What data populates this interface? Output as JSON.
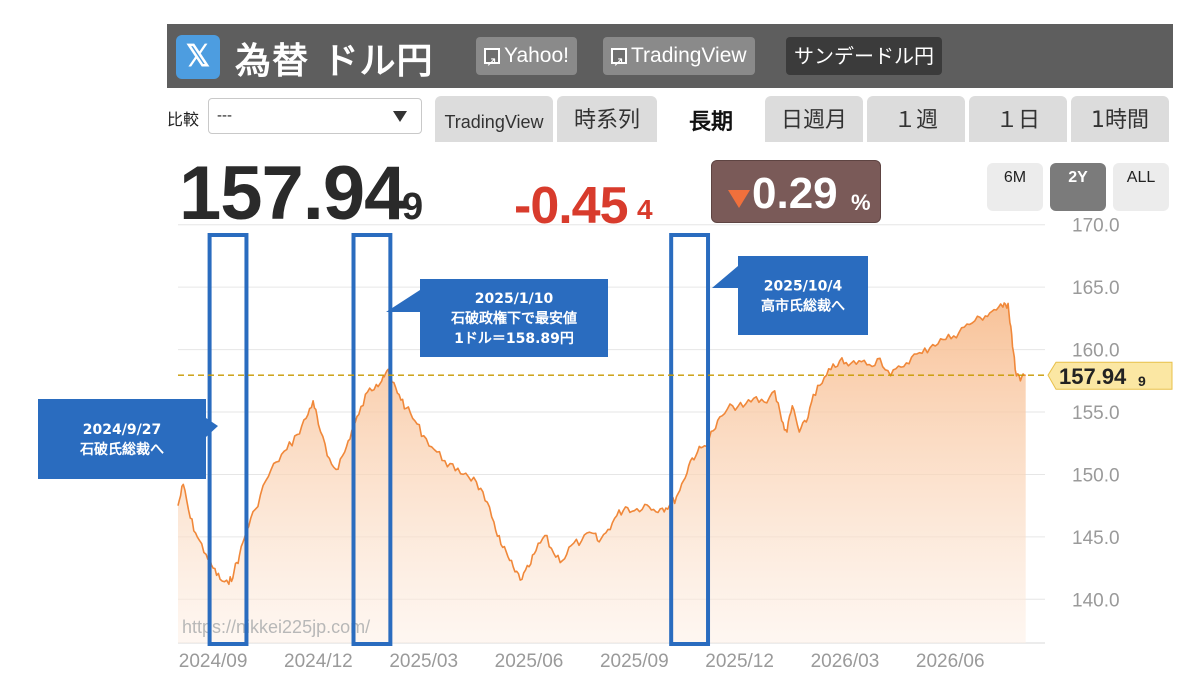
{
  "header": {
    "x_icon_glyph": "𝕏",
    "title": "為替 ドル円",
    "buttons": [
      {
        "label": "Yahoo!",
        "icon": "external-link-icon"
      },
      {
        "label": "TradingView",
        "icon": "external-link-icon"
      },
      {
        "label": "サンデードル円"
      }
    ]
  },
  "compare": {
    "label": "比較",
    "selected": "---"
  },
  "tabs": [
    {
      "label": "TradingView",
      "active": false
    },
    {
      "label": "時系列",
      "active": false
    },
    {
      "label": "長期",
      "active": true
    },
    {
      "label": "日週月",
      "active": false
    },
    {
      "label": "１週",
      "active": false
    },
    {
      "label": "１日",
      "active": false
    },
    {
      "label": "1時間",
      "active": false
    }
  ],
  "quote": {
    "price_main": "157.94",
    "price_sub": "9",
    "change_main": "-0.45",
    "change_sub": "4",
    "percent": "0.29",
    "percent_sign": "%",
    "down_color": "#d83b2c"
  },
  "range_buttons": [
    {
      "label": "6M",
      "active": false
    },
    {
      "label": "2Y",
      "active": true
    },
    {
      "label": "ALL",
      "active": false
    }
  ],
  "chart_data": {
    "type": "area",
    "xlabel": "",
    "ylabel": "",
    "ylim": [
      136.5,
      171.5
    ],
    "y_ticks": [
      "170.0",
      "165.0",
      "160.0",
      "155.0",
      "150.0",
      "145.0",
      "140.0"
    ],
    "y_tick_values": [
      170,
      165,
      160,
      155,
      150,
      145,
      140
    ],
    "x_tick_labels": [
      "2024/09",
      "2024/12",
      "2025/03",
      "2025/06",
      "2025/09",
      "2025/12",
      "2026/03",
      "2026/06"
    ],
    "x_tick_months": [
      1,
      4,
      7,
      10,
      13,
      16,
      19,
      22
    ],
    "xlim_months": [
      0,
      24.7
    ],
    "current_value": 157.949,
    "current_label_main": "157.94",
    "current_label_sub": "9",
    "series": [
      {
        "line_color": "#f0883a",
        "fill_color": "#fbd8bf",
        "points": [
          [
            0,
            147.5
          ],
          [
            0.15,
            149.2
          ],
          [
            0.35,
            146.5
          ],
          [
            0.55,
            145.0
          ],
          [
            0.8,
            143.6
          ],
          [
            1.0,
            142.5
          ],
          [
            1.2,
            141.6
          ],
          [
            1.45,
            141.2
          ],
          [
            1.6,
            142.3
          ],
          [
            1.75,
            143.5
          ],
          [
            1.95,
            145.5
          ],
          [
            2.2,
            147.2
          ],
          [
            2.5,
            149.5
          ],
          [
            2.8,
            151.0
          ],
          [
            3.1,
            152.0
          ],
          [
            3.4,
            153.2
          ],
          [
            3.65,
            154.5
          ],
          [
            3.85,
            155.9
          ],
          [
            4.0,
            154.0
          ],
          [
            4.25,
            151.5
          ],
          [
            4.5,
            150.4
          ],
          [
            4.75,
            151.8
          ],
          [
            4.95,
            153.5
          ],
          [
            5.15,
            154.8
          ],
          [
            5.4,
            156.6
          ],
          [
            5.65,
            157.2
          ],
          [
            5.85,
            157.9
          ],
          [
            5.95,
            158.3
          ],
          [
            6.1,
            157.4
          ],
          [
            6.3,
            156.4
          ],
          [
            6.5,
            155.3
          ],
          [
            6.75,
            154.3
          ],
          [
            7.0,
            153.1
          ],
          [
            7.3,
            152.0
          ],
          [
            7.6,
            151.1
          ],
          [
            7.9,
            150.3
          ],
          [
            8.2,
            150.1
          ],
          [
            8.5,
            149.4
          ],
          [
            8.75,
            147.9
          ],
          [
            9.0,
            146.2
          ],
          [
            9.2,
            144.4
          ],
          [
            9.4,
            143.4
          ],
          [
            9.6,
            142.2
          ],
          [
            9.8,
            141.6
          ],
          [
            10.0,
            142.6
          ],
          [
            10.2,
            143.9
          ],
          [
            10.45,
            145.1
          ],
          [
            10.7,
            143.7
          ],
          [
            10.95,
            143.1
          ],
          [
            11.2,
            144.3
          ],
          [
            11.5,
            144.7
          ],
          [
            11.8,
            145.3
          ],
          [
            12.0,
            144.6
          ],
          [
            12.25,
            145.6
          ],
          [
            12.5,
            146.7
          ],
          [
            12.75,
            147.4
          ],
          [
            13.0,
            147.1
          ],
          [
            13.3,
            147.6
          ],
          [
            13.55,
            147.2
          ],
          [
            13.8,
            147.3
          ],
          [
            14.0,
            147.5
          ],
          [
            14.2,
            148.2
          ],
          [
            14.4,
            149.5
          ],
          [
            14.6,
            151.1
          ],
          [
            14.8,
            151.8
          ],
          [
            15.0,
            152.3
          ],
          [
            15.25,
            153.5
          ],
          [
            15.5,
            154.7
          ],
          [
            15.8,
            155.5
          ],
          [
            16.1,
            155.4
          ],
          [
            16.4,
            156.1
          ],
          [
            16.7,
            155.8
          ],
          [
            17.0,
            156.7
          ],
          [
            17.2,
            154.3
          ],
          [
            17.35,
            153.4
          ],
          [
            17.5,
            155.5
          ],
          [
            17.7,
            153.4
          ],
          [
            17.9,
            154.2
          ],
          [
            18.1,
            156.4
          ],
          [
            18.35,
            157.3
          ],
          [
            18.6,
            158.4
          ],
          [
            18.85,
            159.1
          ],
          [
            19.1,
            158.7
          ],
          [
            19.4,
            159.1
          ],
          [
            19.7,
            158.8
          ],
          [
            20.0,
            159.3
          ],
          [
            20.3,
            157.9
          ],
          [
            20.6,
            158.6
          ],
          [
            20.9,
            159.4
          ],
          [
            21.2,
            159.7
          ],
          [
            21.5,
            160.4
          ],
          [
            21.8,
            160.8
          ],
          [
            22.1,
            161.1
          ],
          [
            22.4,
            161.8
          ],
          [
            22.7,
            162.3
          ],
          [
            23.0,
            162.7
          ],
          [
            23.25,
            163.2
          ],
          [
            23.5,
            163.4
          ],
          [
            23.65,
            163.7
          ],
          [
            23.75,
            161.2
          ],
          [
            23.85,
            158.4
          ],
          [
            24.0,
            157.5
          ],
          [
            24.15,
            157.949
          ]
        ]
      }
    ]
  },
  "annotations": [
    {
      "lines": [
        "2024/9/27",
        "石破氏総裁へ"
      ],
      "box_start_month": 0.9,
      "box_end_month": 1.95
    },
    {
      "lines": [
        "2025/1/10",
        "石破政権下で最安値",
        "1ドル＝158.89円"
      ],
      "box_start_month": 5.0,
      "box_end_month": 6.05
    },
    {
      "lines": [
        "2025/10/4",
        "高市氏総裁へ"
      ],
      "box_start_month": 14.05,
      "box_end_month": 15.1
    }
  ],
  "watermark": "https://nikkei225jp.com/"
}
